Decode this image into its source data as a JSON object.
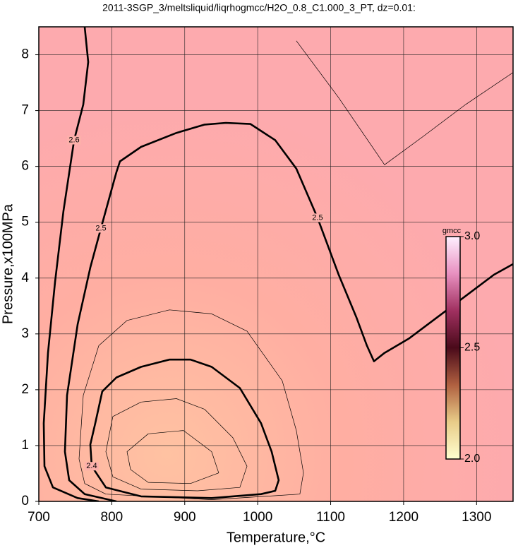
{
  "chart_data": {
    "type": "contour",
    "title": "2011-3SGP_3/meltsliquid/liqrhogmcc/H2O_0.8_C1.000_3_PT, dz=0.01:",
    "x_label": "Temperature,°C",
    "y_label": "Pressure,x100MPa",
    "xlim": [
      700,
      1350
    ],
    "ylim": [
      0,
      8.5
    ],
    "xticks": [
      700,
      800,
      900,
      1000,
      1100,
      1200,
      1300
    ],
    "yticks": [
      0,
      1,
      2,
      3,
      4,
      5,
      6,
      7,
      8
    ],
    "grid": true,
    "contours": [
      {
        "level": 2.6,
        "bold": true,
        "closed": false,
        "x": [
          762.9,
          767.7,
          760.9,
          748.4,
          733.8,
          722.2,
          712.6,
          706.8,
          707.7,
          719.3,
          753.2,
          782.2
        ],
        "y": [
          8.5,
          7.87,
          7.11,
          6.47,
          5.2,
          3.93,
          2.66,
          1.4,
          0.63,
          0.25,
          0.06,
          0
        ]
      },
      {
        "level": 2.5,
        "bold": true,
        "closed": false,
        "x": [
          806.4,
          762.9,
          741.6,
          735.8,
          738.7,
          753.2,
          770.6,
          785.1,
          799.6,
          806.4,
          811.2,
          840.2,
          888.6,
          927.3,
          956.3,
          990.1,
          1024.0,
          1053.0,
          1082.0,
          1111.0,
          1135.2,
          1149.7,
          1159.4,
          1173.9,
          1207.7,
          1246.4,
          1285.1,
          1323.8,
          1349.9
        ],
        "y": [
          0,
          0.13,
          0.38,
          0.89,
          1.9,
          3.17,
          4.19,
          4.89,
          5.58,
          5.9,
          6.09,
          6.35,
          6.6,
          6.75,
          6.78,
          6.76,
          6.47,
          5.96,
          5.08,
          4.06,
          3.3,
          2.79,
          2.51,
          2.66,
          2.92,
          3.3,
          3.68,
          4.06,
          4.25
        ]
      },
      {
        "level": 2.4,
        "bold": true,
        "closed": true,
        "x": [
          772.5,
          770.6,
          777.4,
          787.0,
          806.4,
          840.2,
          878.9,
          907.9,
          936.9,
          975.6,
          1004.6,
          1019.1,
          1028.8,
          1024.0,
          1004.6,
          936.9,
          840.2,
          791.9
        ],
        "y": [
          0.63,
          1.02,
          1.4,
          1.97,
          2.22,
          2.41,
          2.54,
          2.54,
          2.41,
          2.03,
          1.4,
          0.89,
          0.38,
          0.19,
          0.13,
          0.06,
          0.09,
          0.25
        ]
      },
      {
        "level": 2.45,
        "bold": false,
        "closed": true,
        "x": [
          755.1,
          760.9,
          782.2,
          820.9,
          878.9,
          936.9,
          985.3,
          1033.6,
          1053.0,
          1062.7,
          1057.8,
          936.9,
          791.9,
          762.9
        ],
        "y": [
          0.76,
          1.9,
          2.79,
          3.24,
          3.43,
          3.36,
          3.05,
          2.16,
          1.27,
          0.51,
          0.13,
          0.03,
          0.13,
          0.32
        ]
      },
      {
        "level": 2.35,
        "bold": false,
        "closed": true,
        "x": [
          791.9,
          801.5,
          840.2,
          888.6,
          927.3,
          966.0,
          985.3,
          975.6,
          917.6,
          840.2,
          801.5
        ],
        "y": [
          0.89,
          1.52,
          1.78,
          1.84,
          1.65,
          1.14,
          0.63,
          0.25,
          0.19,
          0.22,
          0.44
        ]
      },
      {
        "level": 2.3,
        "bold": false,
        "closed": true,
        "x": [
          820.9,
          849.9,
          898.3,
          936.9,
          946.6,
          907.9,
          849.9,
          825.7
        ],
        "y": [
          0.89,
          1.21,
          1.27,
          0.89,
          0.51,
          0.32,
          0.34,
          0.57
        ]
      },
      {
        "level": 2.55,
        "bold": false,
        "closed": false,
        "x": [
          1053.0,
          1111.0,
          1173.9,
          1227.1,
          1285.1,
          1349.9
        ],
        "y": [
          8.25,
          7.23,
          6.03,
          6.54,
          7.11,
          7.68
        ]
      }
    ],
    "colorbar": {
      "label": "gmcc",
      "lim": [
        2,
        3
      ],
      "ticks": [
        {
          "value": 2,
          "label": "2.0"
        },
        {
          "value": 2.5,
          "label": "2.5"
        },
        {
          "value": 3,
          "label": "3.0"
        }
      ],
      "colors": [
        "#ffffd0",
        "#e8cc88",
        "#b06040",
        "#4a0a1a",
        "#a03060",
        "#e890c0",
        "#fff0ff"
      ]
    }
  }
}
